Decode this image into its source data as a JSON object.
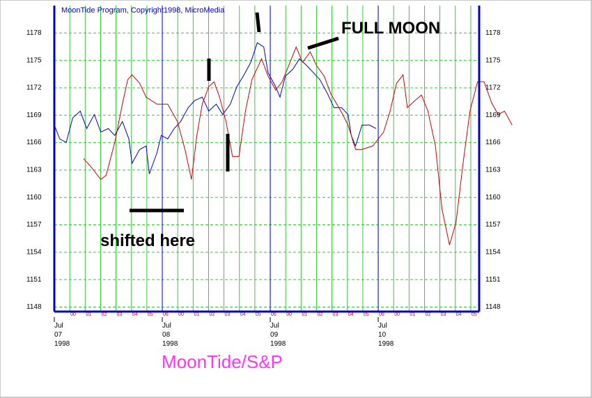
{
  "chart_data": {
    "type": "line",
    "title": "MoonTide/S&P",
    "subtitle": "MoonTide Program, Copyright1998, MicroMedia",
    "annotations": [
      "FULL MOON",
      "shifted here"
    ],
    "xlim": [
      0,
      3.935
    ],
    "ylim": [
      1147.5,
      1181
    ],
    "yticks": [
      1148,
      1151,
      1154,
      1157,
      1160,
      1163,
      1166,
      1169,
      1172,
      1175,
      1178
    ],
    "xticks": [
      {
        "value": 0,
        "label": "Jul 07 1998"
      },
      {
        "value": 1,
        "label": "Jul 08 1998"
      },
      {
        "value": 2,
        "label": "Jul 09 1998"
      },
      {
        "value": 3,
        "label": "Jul 10 1998"
      }
    ],
    "minor_xticks": [
      {
        "value": 0.143,
        "label": "00"
      },
      {
        "value": 0.286,
        "label": "01"
      },
      {
        "value": 0.429,
        "label": "02"
      },
      {
        "value": 0.571,
        "label": "03"
      },
      {
        "value": 0.714,
        "label": "04"
      },
      {
        "value": 0.857,
        "label": "05"
      },
      {
        "value": 1,
        "label": "06"
      },
      {
        "value": 1.143,
        "label": "00"
      },
      {
        "value": 1.286,
        "label": "01"
      },
      {
        "value": 1.429,
        "label": "02"
      },
      {
        "value": 1.571,
        "label": "03"
      },
      {
        "value": 1.714,
        "label": "04"
      },
      {
        "value": 1.857,
        "label": "05"
      },
      {
        "value": 2,
        "label": "06"
      },
      {
        "value": 2.143,
        "label": "00"
      },
      {
        "value": 2.286,
        "label": "01"
      },
      {
        "value": 2.429,
        "label": "02"
      },
      {
        "value": 2.571,
        "label": "03"
      },
      {
        "value": 2.714,
        "label": "04"
      },
      {
        "value": 2.857,
        "label": "05"
      },
      {
        "value": 3,
        "label": "06"
      },
      {
        "value": 3.143,
        "label": "00"
      },
      {
        "value": 3.286,
        "label": "01"
      },
      {
        "value": 3.429,
        "label": "02"
      },
      {
        "value": 3.571,
        "label": "03"
      },
      {
        "value": 3.714,
        "label": "04"
      },
      {
        "value": 3.857,
        "label": "05"
      }
    ],
    "grid": true,
    "grid_color": "#33cc33",
    "axis_color": "#0000cc",
    "series": [
      {
        "color": "#0000cc",
        "x": [
          0,
          0.05,
          0.11,
          0.17,
          0.24,
          0.3,
          0.37,
          0.43,
          0.5,
          0.56,
          0.63,
          0.69,
          0.72,
          0.79,
          0.85,
          0.88,
          0.95,
          0.99,
          1.05,
          1.11,
          1.17,
          1.24,
          1.3,
          1.37,
          1.43,
          1.5,
          1.56,
          1.63,
          1.69,
          1.75,
          1.82,
          1.88,
          1.94,
          1.98,
          2.05,
          2.09,
          2.14,
          2.21,
          2.27,
          2.34,
          2.4,
          2.46,
          2.53,
          2.59,
          2.66,
          2.72,
          2.75,
          2.79,
          2.85,
          2.92,
          2.98
        ],
        "values": [
          1167.92,
          1166.4,
          1166.02,
          1168.69,
          1169.45,
          1167.54,
          1169.07,
          1167.16,
          1167.54,
          1166.78,
          1168.31,
          1166.4,
          1163.73,
          1165.25,
          1165.63,
          1162.58,
          1164.87,
          1166.78,
          1166.4,
          1167.54,
          1168.31,
          1169.83,
          1170.6,
          1170.98,
          1169.45,
          1170.21,
          1169.07,
          1170.21,
          1172.12,
          1173.27,
          1174.79,
          1176.93,
          1176.47,
          1173.65,
          1172.12,
          1170.98,
          1173.27,
          1174.03,
          1175.18,
          1174.41,
          1173.65,
          1172.89,
          1171.36,
          1169.83,
          1169.83,
          1169.07,
          1166.78,
          1165.63,
          1167.92,
          1167.92,
          1167.54
        ]
      },
      {
        "color": "#cc0000",
        "x": [
          0.27,
          0.34,
          0.43,
          0.48,
          0.56,
          0.63,
          0.68,
          0.72,
          0.79,
          0.85,
          0.95,
          1.05,
          1.14,
          1.21,
          1.27,
          1.32,
          1.37,
          1.43,
          1.48,
          1.53,
          1.59,
          1.65,
          1.71,
          1.77,
          1.83,
          1.92,
          1.98,
          2.05,
          2.11,
          2.17,
          2.24,
          2.3,
          2.37,
          2.43,
          2.5,
          2.56,
          2.66,
          2.72,
          2.79,
          2.85,
          2.95,
          3.05,
          3.11,
          3.17,
          3.23,
          3.27,
          3.34,
          3.4,
          3.46,
          3.53,
          3.59,
          3.66,
          3.72,
          3.79,
          3.85,
          3.92,
          3.98,
          4.05,
          4.11,
          4.17,
          4.24
        ],
        "values": [
          1164.26,
          1163.34,
          1161.97,
          1162.43,
          1166.02,
          1170.21,
          1172.89,
          1173.42,
          1172.5,
          1170.98,
          1170.21,
          1170.21,
          1168.31,
          1165.25,
          1161.97,
          1166.78,
          1170.21,
          1172.12,
          1172.66,
          1170.98,
          1168.31,
          1164.49,
          1164.49,
          1169.45,
          1172.89,
          1175.18,
          1173.27,
          1171.74,
          1172.66,
          1174.41,
          1176.47,
          1174.79,
          1175.94,
          1174.41,
          1173.27,
          1171.36,
          1169.3,
          1167.92,
          1165.25,
          1165.25,
          1165.63,
          1167.16,
          1169.45,
          1172.5,
          1173.42,
          1169.83,
          1170.6,
          1171.21,
          1169.45,
          1165.63,
          1158.76,
          1154.79,
          1157.24,
          1164.11,
          1169.45,
          1172.66,
          1172.66,
          1170.37,
          1169.07,
          1169.45,
          1167.92
        ]
      }
    ]
  }
}
